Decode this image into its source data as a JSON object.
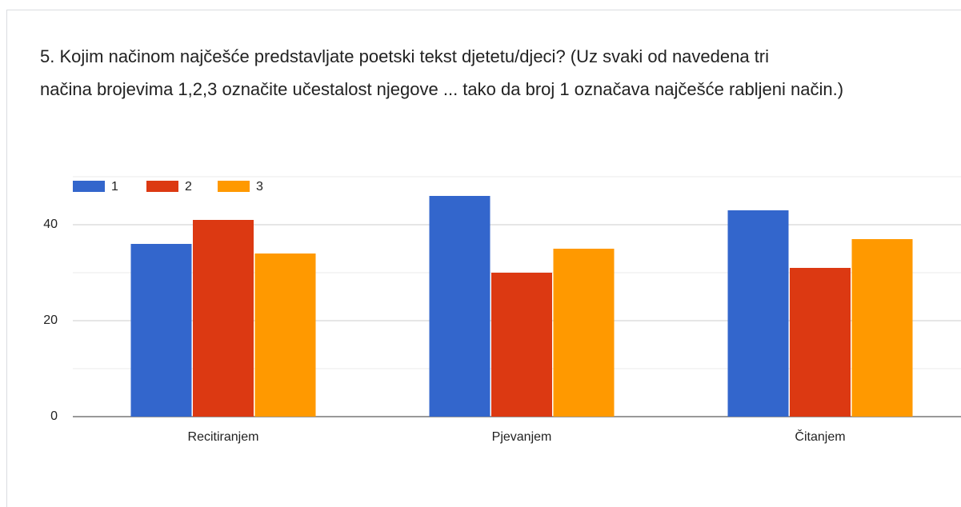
{
  "chart_data": {
    "type": "bar",
    "title": [
      "5. Kojim načinom najčešće predstavljate poetski tekst djetetu/djeci? (Uz svaki od navedena tri",
      "načina brojevima 1,2,3 označite učestalost njegove ... tako da broj 1 označava najčešće rabljeni način.)"
    ],
    "categories": [
      "Recitiranjem",
      "Pjevanjem",
      "Čitanjem"
    ],
    "series": [
      {
        "name": "1",
        "color": "#3366cc",
        "values": [
          36,
          46,
          43
        ]
      },
      {
        "name": "2",
        "color": "#dc3912",
        "values": [
          41,
          30,
          31
        ]
      },
      {
        "name": "3",
        "color": "#ff9900",
        "values": [
          34,
          35,
          37
        ]
      }
    ],
    "ylim": [
      0,
      50
    ],
    "yticks": [
      0,
      20,
      40
    ],
    "minor_yticks": [
      10,
      30,
      50
    ],
    "grid": true,
    "legend": "top-left"
  }
}
